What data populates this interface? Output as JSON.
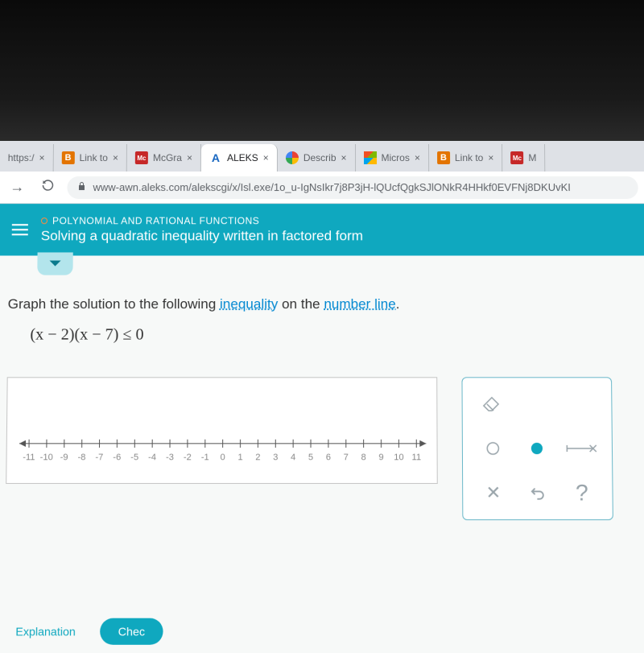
{
  "tabs": {
    "t0": {
      "label": "https:/",
      "favicon": ""
    },
    "t1": {
      "label": "Link to",
      "favicon_letter": "B"
    },
    "t2": {
      "label": "McGra",
      "favicon_text": "Mc"
    },
    "t3": {
      "label": "ALEKS",
      "favicon_letter": "A"
    },
    "t4": {
      "label": "Describ",
      "favicon_letter": "G"
    },
    "t5": {
      "label": "Micros",
      "favicon": ""
    },
    "t6": {
      "label": "Link to",
      "favicon_letter": "B"
    },
    "t7": {
      "label": "M",
      "favicon_text": "Mc"
    }
  },
  "nav": {
    "forward": "→",
    "reload": "⟳"
  },
  "url": {
    "text": "www-awn.aleks.com/alekscgi/x/Isl.exe/1o_u-IgNsIkr7j8P3jH-lQUcfQgkSJlONkR4HHkf0EVFNj8DKUvKI"
  },
  "topic": {
    "category": "POLYNOMIAL AND RATIONAL FUNCTIONS",
    "title": "Solving a quadratic inequality written in factored form"
  },
  "question": {
    "pre": "Graph the solution to the following ",
    "term1": "inequality",
    "mid": " on the ",
    "term2": "number line",
    "post": ".",
    "expr": "(x − 2)(x − 7) ≤ 0"
  },
  "numberline": {
    "min": -11,
    "max": 11,
    "ticks": [
      "-11",
      "-10",
      "-9",
      "-8",
      "-7",
      "-6",
      "-5",
      "-4",
      "-3",
      "-2",
      "-1",
      "0",
      "1",
      "2",
      "3",
      "4",
      "5",
      "6",
      "7",
      "8",
      "9",
      "10",
      "11"
    ],
    "axis_color": "#555",
    "label_color": "#888"
  },
  "palette": {
    "eraser": "eraser",
    "open_circle": "○",
    "closed_circle": "●",
    "segment": "segment",
    "clear": "✕",
    "undo": "↶",
    "help": "?"
  },
  "bottom": {
    "explanation": "Explanation",
    "check": "Chec"
  }
}
